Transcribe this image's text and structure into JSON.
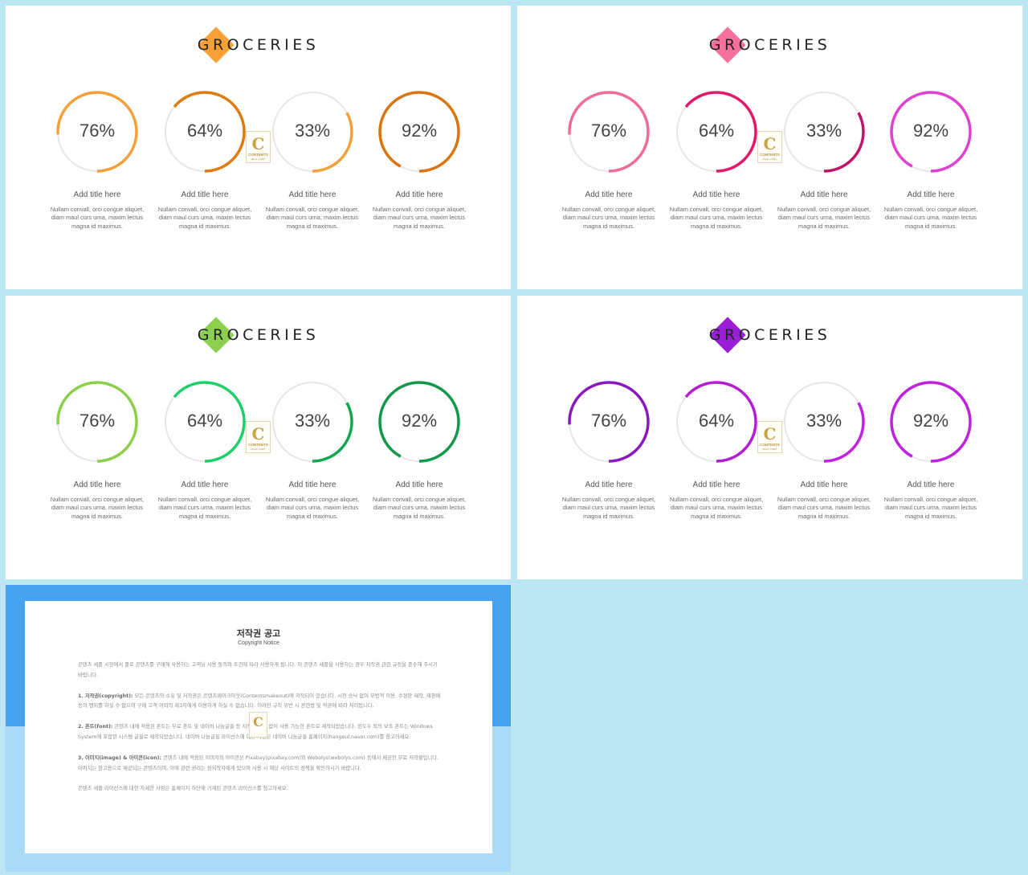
{
  "slides": [
    {
      "title": "GROCERIES",
      "colors": [
        "#f4a03a",
        "#e07b12",
        "#f4a03a",
        "#da7410"
      ],
      "diamond": "#f7a035",
      "items": [
        {
          "percent": "76%",
          "value": 76,
          "title": "Add title here",
          "desc": "Nullam convall, orci congue aliquet, diam maul curs urna, maxim lectus magna id maximus."
        },
        {
          "percent": "64%",
          "value": 64,
          "title": "Add title here",
          "desc": "Nullam convall, orci congue aliquet, diam maul curs urna, maxim lectus magna id maximus."
        },
        {
          "percent": "33%",
          "value": 33,
          "title": "Add title here",
          "desc": "Nullam convall, orci congue aliquet, diam maul curs urna, maxim lectus magna id maximus."
        },
        {
          "percent": "92%",
          "value": 92,
          "title": "Add title here",
          "desc": "Nullam convall, orci congue aliquet, diam maul curs urna, maxim lectus magna id maximus."
        }
      ]
    },
    {
      "title": "GROCERIES",
      "colors": [
        "#f06a9b",
        "#e3186a",
        "#c0146a",
        "#e040d0"
      ],
      "diamond": "#f4709f",
      "items": [
        {
          "percent": "76%",
          "value": 76,
          "title": "Add title here",
          "desc": "Nullam convall, orci congue aliquet, diam maul curs urna, maxim lectus magna id maximus."
        },
        {
          "percent": "64%",
          "value": 64,
          "title": "Add title here",
          "desc": "Nullam convall, orci congue aliquet, diam maul curs urna, maxim lectus magna id maximus."
        },
        {
          "percent": "33%",
          "value": 33,
          "title": "Add title here",
          "desc": "Nullam convall, orci congue aliquet, diam maul curs urna, maxim lectus magna id maximus."
        },
        {
          "percent": "92%",
          "value": 92,
          "title": "Add title here",
          "desc": "Nullam convall, orci congue aliquet, diam maul curs urna, maxim lectus magna id maximus."
        }
      ]
    },
    {
      "title": "GROCERIES",
      "colors": [
        "#8ccf4a",
        "#1fd06a",
        "#12a650",
        "#12984a"
      ],
      "diamond": "#8ccf4f",
      "items": [
        {
          "percent": "76%",
          "value": 76,
          "title": "Add title here",
          "desc": "Nullam convall, orci congue aliquet, diam maul curs urna, maxim lectus magna id maximus."
        },
        {
          "percent": "64%",
          "value": 64,
          "title": "Add title here",
          "desc": "Nullam convall, orci congue aliquet, diam maul curs urna, maxim lectus magna id maximus."
        },
        {
          "percent": "33%",
          "value": 33,
          "title": "Add title here",
          "desc": "Nullam convall, orci congue aliquet, diam maul curs urna, maxim lectus magna id maximus."
        },
        {
          "percent": "92%",
          "value": 92,
          "title": "Add title here",
          "desc": "Nullam convall, orci congue aliquet, diam maul curs urna, maxim lectus magna id maximus."
        }
      ]
    },
    {
      "title": "GROCERIES",
      "colors": [
        "#8a18c0",
        "#b41ed0",
        "#c020e0",
        "#c020e0"
      ],
      "diamond": "#9a1ed6",
      "items": [
        {
          "percent": "76%",
          "value": 76,
          "title": "Add title here",
          "desc": "Nullam convall, orci congue aliquet, diam maul curs urna, maxim lectus magna id maximus."
        },
        {
          "percent": "64%",
          "value": 64,
          "title": "Add title here",
          "desc": "Nullam convall, orci congue aliquet, diam maul curs urna, maxim lectus magna id maximus."
        },
        {
          "percent": "33%",
          "value": 33,
          "title": "Add title here",
          "desc": "Nullam convall, orci congue aliquet, diam maul curs urna, maxim lectus magna id maximus."
        },
        {
          "percent": "92%",
          "value": 92,
          "title": "Add title here",
          "desc": "Nullam convall, orci congue aliquet, diam maul curs urna, maxim lectus magna id maximus."
        }
      ]
    }
  ],
  "track_color": "#e6e6e6",
  "watermark": {
    "letter": "C",
    "text": "CONTENTS",
    "sub": "MAUL CORP"
  },
  "notice": {
    "title": "저작권 공고",
    "subtitle": "Copyright Notice",
    "intro": "콘텐츠 세플 시장에서 플로 콘텐츠를 구매해 사용하는 고객님 사용 동의와 조건에 따라 사용하게 됩니다. 이 콘텐츠 세플을 사용하는 경우 저작권 관련 규정을 준수해 주시기 바랍니다.",
    "sections": [
      {
        "head": "1. 저작권(copyright):",
        "text": "모든 콘텐츠의 소유 및 저작권은 콘텐츠메이크아웃(Contentsmakeout)에 저작되어 있습니다. 시전 승낙 없이 모방적 이용, 수정판 제작, 재판매 등의 행위를 하실 수 없으며 구매 고객 이외의 제3자에게 이용하게 하실 수 없습니다. 이러한 규칙 위반 시 관련법 및 약관에 따라 처리됩니다."
      },
      {
        "head": "2. 폰트(font):",
        "text": "콘텐츠 내에 적용된 폰트는 무료 폰트 및 네이버 나눔글꼴 등 저작권 문제 없이 사용 가능한 폰트로 제작되었습니다. 윈도우 외의 보조 폰트는 Windows System에 포함된 시스템 글꼴로 제작되었습니다. 네이버 나눔글꼴 라이선스에 대한 사항은 네이버 나눔글꼴 홈페이지(hangeul.naver.com)를 참고하세요."
      },
      {
        "head": "3. 이미지(image) & 아이콘(icon):",
        "text": "콘텐츠 내에 적용된 이미지와 아이콘은 Pixabay(pixabay.com)와 Webolys(webolys.com) 등에서 제공한 무료 저작물입니다. 이미지는 참고용으로 제공되는 콘텐츠이며, 이에 관련 권리는 원저작자에게 있으며 사용 시 해당 사이트의 정책을 확인하시기 바랍니다."
      }
    ],
    "outro": "콘텐츠 세플 라이선스에 대한 자세한 사항은 홈페이지 하단에 기재된 콘텐츠 라이선스를 참고하세요."
  }
}
